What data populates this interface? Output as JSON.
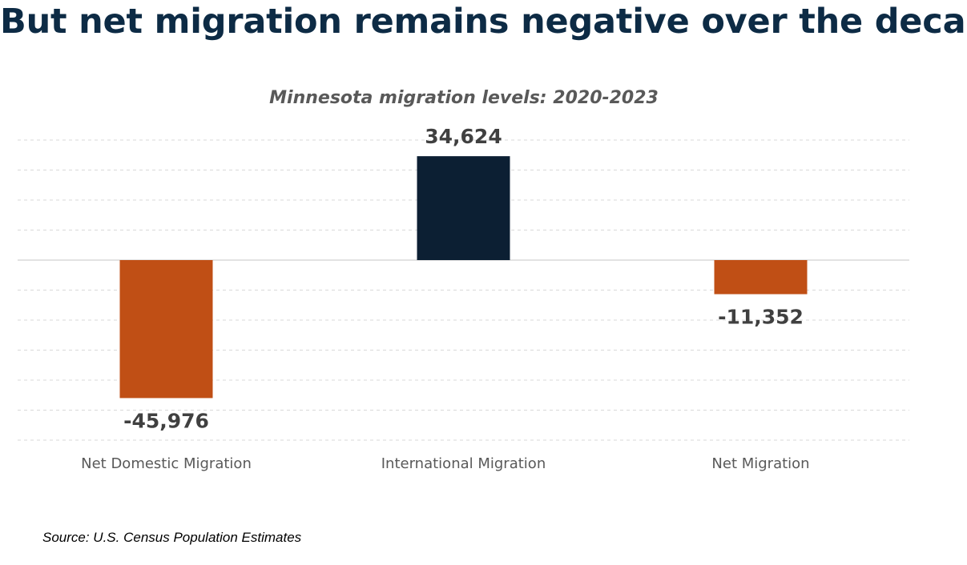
{
  "slide": {
    "title": "But net migration remains negative over the decade",
    "source": "Source: U.S. Census Population Estimates"
  },
  "colors": {
    "title": "#0d2b45",
    "negative_bar": "#c04f15",
    "positive_bar": "#0c1f33",
    "label_text": "#404040",
    "axis_text": "#595959",
    "gridline": "#d9d9d9"
  },
  "chart_data": {
    "type": "bar",
    "title": "Minnesota migration levels: 2020-2023",
    "categories": [
      "Net Domestic Migration",
      "International Migration",
      "Net Migration"
    ],
    "values": [
      -45976,
      34624,
      -11352
    ],
    "data_labels": [
      "-45,976",
      "34,624",
      "-11,352"
    ],
    "bar_colors": [
      "#c04f15",
      "#0c1f33",
      "#c04f15"
    ],
    "xlabel": "",
    "ylabel": "",
    "ylim": [
      -60000,
      40000
    ],
    "gridline_step": 10000,
    "grid": true,
    "legend": "none"
  }
}
